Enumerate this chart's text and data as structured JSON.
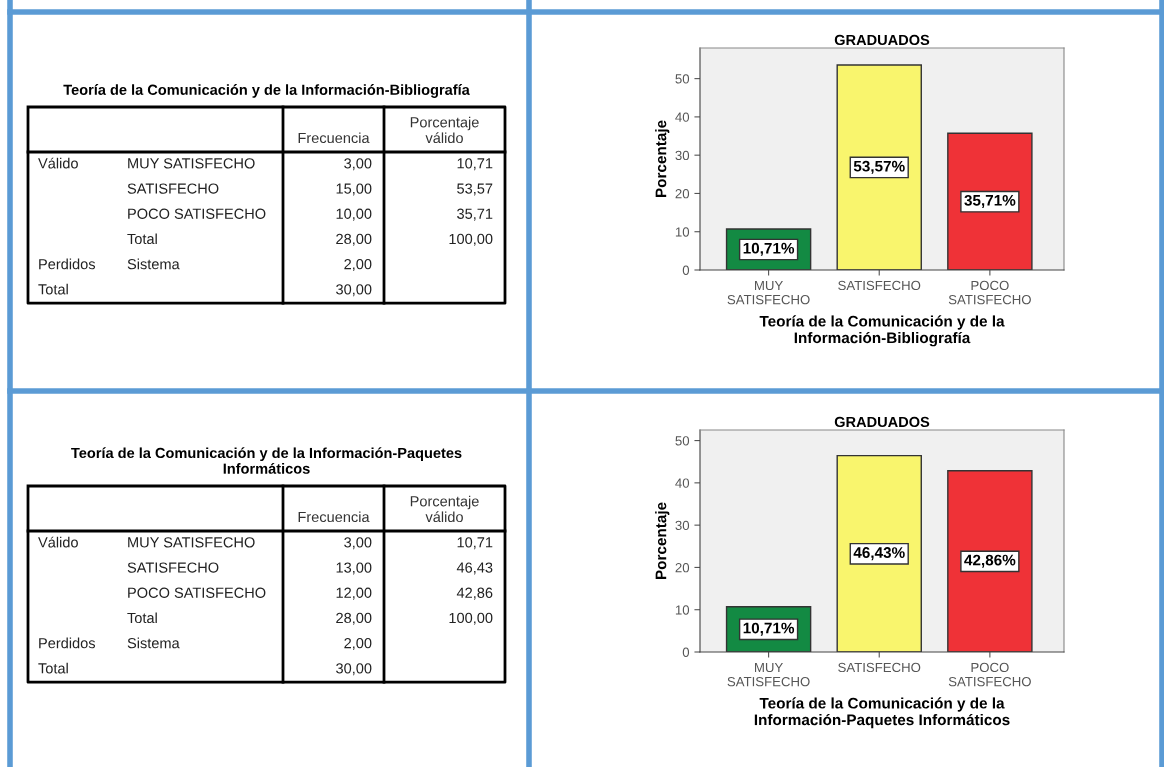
{
  "chart_data": [
    {
      "type": "other",
      "title": "Teoría de la Comunicación y de la Información-Bibliografía",
      "categories": [
        null,
        null,
        "Frecuencia",
        "Porcentaje válido"
      ],
      "cells": [
        [
          "Válido",
          "MUY SATISFECHO",
          "3,00",
          "10,71"
        ],
        [
          null,
          "SATISFECHO",
          "15,00",
          "53,57"
        ],
        [
          null,
          "POCO SATISFECHO",
          "10,00",
          "35,71"
        ],
        [
          null,
          "Total",
          "28,00",
          "100,00"
        ],
        [
          "Perdidos",
          "Sistema",
          "2,00",
          null
        ],
        [
          "Total",
          null,
          "30,00",
          null
        ]
      ]
    },
    {
      "type": "bar",
      "title": "GRADUADOS",
      "xlabel": "Teoría de la Comunicación y de la Información-Bibliografía",
      "ylabel": "Porcentaje",
      "categories": [
        "MUY SATISFECHO",
        "SATISFECHO",
        "POCO SATISFECHO"
      ],
      "values": [
        10.71,
        53.57,
        35.71
      ],
      "colors": [
        "#138a43",
        "#f9f56d",
        "#ef3237"
      ],
      "value_labels": [
        "10,71%",
        "53,57%",
        "35,71%"
      ],
      "ylim": [
        0,
        58
      ],
      "yticks": [
        0,
        10,
        20,
        30,
        40,
        50
      ],
      "grid": false,
      "legend": false
    },
    {
      "type": "other",
      "title": "Teoría de la Comunicación y de la Información-Paquetes Informáticos",
      "categories": [
        null,
        null,
        "Frecuencia",
        "Porcentaje válido"
      ],
      "cells": [
        [
          "Válido",
          "MUY SATISFECHO",
          "3,00",
          "10,71"
        ],
        [
          null,
          "SATISFECHO",
          "13,00",
          "46,43"
        ],
        [
          null,
          "POCO SATISFECHO",
          "12,00",
          "42,86"
        ],
        [
          null,
          "Total",
          "28,00",
          "100,00"
        ],
        [
          "Perdidos",
          "Sistema",
          "2,00",
          null
        ],
        [
          "Total",
          null,
          "30,00",
          null
        ]
      ]
    },
    {
      "type": "bar",
      "title": "GRADUADOS",
      "xlabel": "Teoría de la Comunicación y de la Información-Paquetes Informáticos",
      "ylabel": "Porcentaje",
      "categories": [
        "MUY SATISFECHO",
        "SATISFECHO",
        "POCO SATISFECHO"
      ],
      "values": [
        10.71,
        46.43,
        42.86
      ],
      "colors": [
        "#138a43",
        "#f9f56d",
        "#ef3237"
      ],
      "value_labels": [
        "10,71%",
        "46,43%",
        "42,86%"
      ],
      "ylim": [
        0,
        52.5
      ],
      "yticks": [
        0,
        10,
        20,
        30,
        40,
        50
      ],
      "grid": false,
      "legend": false
    }
  ]
}
